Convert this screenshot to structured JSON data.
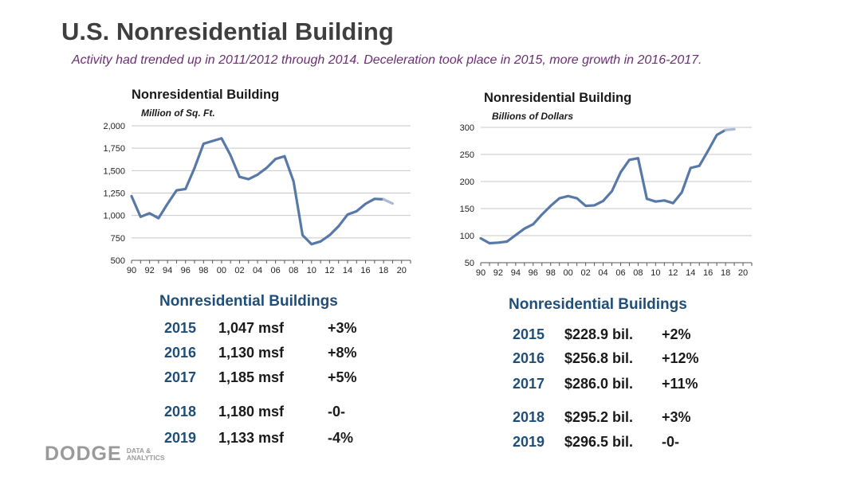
{
  "header": {
    "title": "U.S. Nonresidential Building",
    "subtitle": "Activity had trended up in 2011/2012 through 2014.  Deceleration took place in 2015, more growth in 2016-2017."
  },
  "chart_data": [
    {
      "type": "line",
      "title": "Nonresidential Building",
      "subtitle": "Million of Sq. Ft.",
      "xlabel": "",
      "ylabel": "",
      "ylim": [
        500,
        2000
      ],
      "yticks": [
        500,
        750,
        1000,
        1250,
        1500,
        1750,
        2000
      ],
      "ytick_labels": [
        "500",
        "750",
        "1,000",
        "1,250",
        "1,500",
        "1,750",
        "2,000"
      ],
      "xlim": [
        1990,
        2021
      ],
      "xtick_labels": [
        "90",
        "92",
        "94",
        "96",
        "98",
        "00",
        "02",
        "04",
        "06",
        "08",
        "10",
        "12",
        "14",
        "16",
        "18",
        "20"
      ],
      "grid": true,
      "color": "#5878a8",
      "projected_color": "#a8bcd8",
      "x": [
        1990,
        1991,
        1992,
        1993,
        1994,
        1995,
        1996,
        1997,
        1998,
        1999,
        2000,
        2001,
        2002,
        2003,
        2004,
        2005,
        2006,
        2007,
        2008,
        2009,
        2010,
        2011,
        2012,
        2013,
        2014,
        2015,
        2016,
        2017,
        2018,
        2019
      ],
      "values": [
        1215,
        985,
        1025,
        970,
        1130,
        1280,
        1295,
        1530,
        1800,
        1830,
        1860,
        1670,
        1430,
        1405,
        1455,
        1530,
        1630,
        1660,
        1380,
        780,
        680,
        710,
        780,
        880,
        1010,
        1047,
        1130,
        1185,
        1180,
        1133
      ],
      "projected_from": 2018
    },
    {
      "type": "line",
      "title": "Nonresidential Building",
      "subtitle": "Billions of Dollars",
      "xlabel": "",
      "ylabel": "",
      "ylim": [
        50,
        300
      ],
      "yticks": [
        50,
        100,
        150,
        200,
        250,
        300
      ],
      "ytick_labels": [
        "50",
        "100",
        "150",
        "200",
        "250",
        "300"
      ],
      "xlim": [
        1990,
        2021
      ],
      "xtick_labels": [
        "90",
        "92",
        "94",
        "96",
        "98",
        "00",
        "02",
        "04",
        "06",
        "08",
        "10",
        "12",
        "14",
        "16",
        "18",
        "20"
      ],
      "grid": true,
      "color": "#5878a8",
      "projected_color": "#a8bcd8",
      "x": [
        1990,
        1991,
        1992,
        1993,
        1994,
        1995,
        1996,
        1997,
        1998,
        1999,
        2000,
        2001,
        2002,
        2003,
        2004,
        2005,
        2006,
        2007,
        2008,
        2009,
        2010,
        2011,
        2012,
        2013,
        2014,
        2015,
        2016,
        2017,
        2018,
        2019
      ],
      "values": [
        95,
        86,
        87,
        89,
        101,
        113,
        121,
        139,
        155,
        169,
        173,
        169,
        155,
        156,
        164,
        182,
        217,
        240,
        243,
        168,
        163,
        165,
        160,
        180,
        225,
        228.9,
        256.8,
        286.0,
        295.2,
        296.5
      ],
      "projected_from": 2018
    }
  ],
  "left_table": {
    "title": "Nonresidential Buildings",
    "rows": [
      {
        "year": "2015",
        "value": "1,047 msf",
        "change": "+3%"
      },
      {
        "year": "2016",
        "value": "1,130 msf",
        "change": "+8%"
      },
      {
        "year": "2017",
        "value": "1,185 msf",
        "change": "+5%"
      },
      {
        "year": "2018",
        "value": "1,180 msf",
        "change": "-0-"
      },
      {
        "year": "2019",
        "value": "1,133 msf",
        "change": "-4%"
      }
    ]
  },
  "right_table": {
    "title": "Nonresidential Buildings",
    "rows": [
      {
        "year": "2015",
        "value": "$228.9 bil.",
        "change": "+2%"
      },
      {
        "year": "2016",
        "value": "$256.8 bil.",
        "change": "+12%"
      },
      {
        "year": "2017",
        "value": "$286.0 bil.",
        "change": "+11%"
      },
      {
        "year": "2018",
        "value": "$295.2 bil.",
        "change": "+3%"
      },
      {
        "year": "2019",
        "value": "$296.5 bil.",
        "change": "-0-"
      }
    ]
  },
  "logo": {
    "name": "DODGE",
    "line1": "DATA &",
    "line2": "ANALYTICS"
  }
}
